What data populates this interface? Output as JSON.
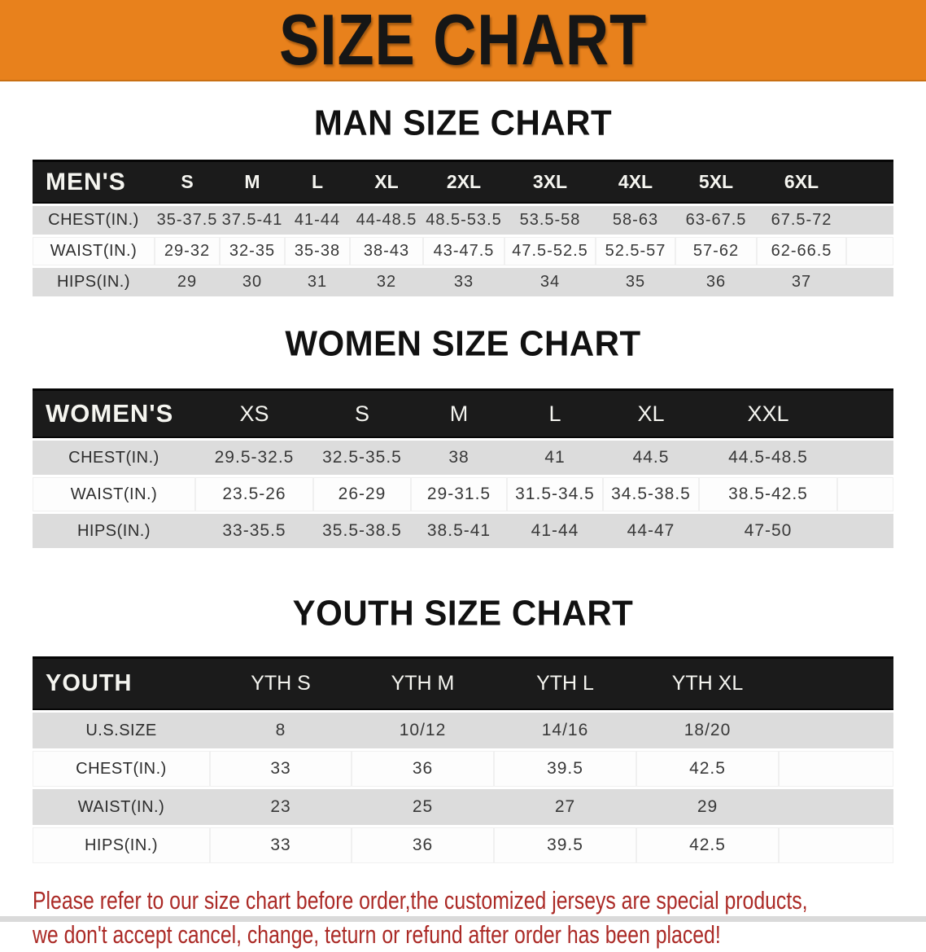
{
  "banner": {
    "title": "SIZE CHART",
    "bg_color": "#e8811c"
  },
  "colors": {
    "banner_orange": "#e8811c",
    "table_header_black": "#1b1b1b",
    "row_shade_gray": "#dcdcdc",
    "disclaimer_red": "#ab2a26"
  },
  "men": {
    "heading": "MAN SIZE CHART",
    "corner": "MEN'S",
    "columns": [
      "S",
      "M",
      "L",
      "XL",
      "2XL",
      "3XL",
      "4XL",
      "5XL",
      "6XL"
    ],
    "rows": [
      {
        "label": "CHEST(IN.)",
        "values": [
          "35-37.5",
          "37.5-41",
          "41-44",
          "44-48.5",
          "48.5-53.5",
          "53.5-58",
          "58-63",
          "63-67.5",
          "67.5-72"
        ]
      },
      {
        "label": "WAIST(IN.)",
        "values": [
          "29-32",
          "32-35",
          "35-38",
          "38-43",
          "43-47.5",
          "47.5-52.5",
          "52.5-57",
          "57-62",
          "62-66.5"
        ]
      },
      {
        "label": "HIPS(IN.)",
        "values": [
          "29",
          "30",
          "31",
          "32",
          "33",
          "34",
          "35",
          "36",
          "37"
        ]
      }
    ]
  },
  "women": {
    "heading": "WOMEN SIZE CHART",
    "corner": "WOMEN'S",
    "columns": [
      "XS",
      "S",
      "M",
      "L",
      "XL",
      "XXL"
    ],
    "rows": [
      {
        "label": "CHEST(IN.)",
        "values": [
          "29.5-32.5",
          "32.5-35.5",
          "38",
          "41",
          "44.5",
          "44.5-48.5"
        ]
      },
      {
        "label": "WAIST(IN.)",
        "values": [
          "23.5-26",
          "26-29",
          "29-31.5",
          "31.5-34.5",
          "34.5-38.5",
          "38.5-42.5"
        ]
      },
      {
        "label": "HIPS(IN.)",
        "values": [
          "33-35.5",
          "35.5-38.5",
          "38.5-41",
          "41-44",
          "44-47",
          "47-50"
        ]
      }
    ]
  },
  "youth": {
    "heading": "YOUTH SIZE CHART",
    "corner": "YOUTH",
    "columns": [
      "YTH S",
      "YTH M",
      "YTH L",
      "YTH XL"
    ],
    "rows": [
      {
        "label": "U.S.SIZE",
        "values": [
          "8",
          "10/12",
          "14/16",
          "18/20"
        ]
      },
      {
        "label": "CHEST(IN.)",
        "values": [
          "33",
          "36",
          "39.5",
          "42.5"
        ]
      },
      {
        "label": "WAIST(IN.)",
        "values": [
          "23",
          "25",
          "27",
          "29"
        ]
      },
      {
        "label": "HIPS(IN.)",
        "values": [
          "33",
          "36",
          "39.5",
          "42.5"
        ]
      }
    ]
  },
  "disclaimer": {
    "line1": "Please refer to our size chart before order,the customized jerseys are special products,",
    "line2": "we don't accept cancel, change, teturn or refund after order has been placed!"
  }
}
